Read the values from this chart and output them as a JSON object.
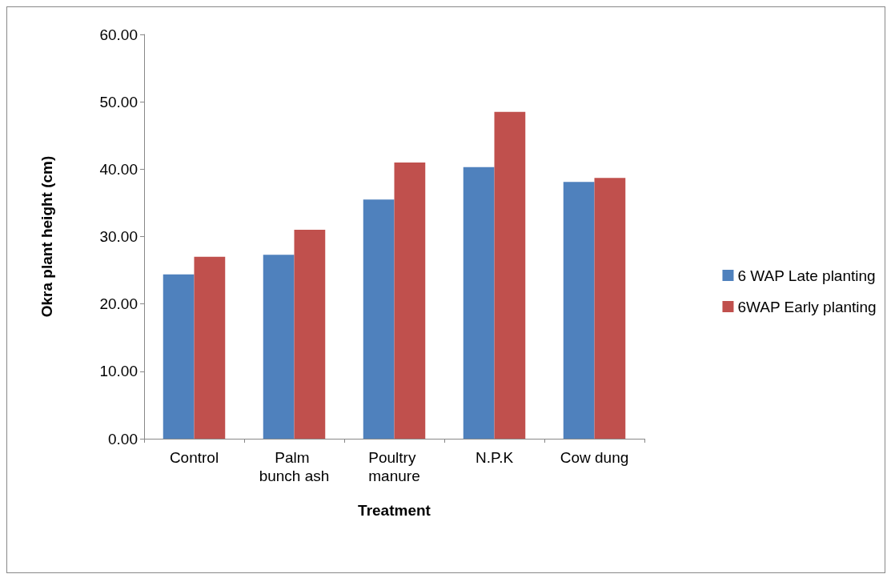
{
  "chart_data": {
    "type": "bar",
    "xlabel": "Treatment",
    "ylabel": "Okra plant height (cm)",
    "categories": [
      "Control",
      "Palm bunch ash",
      "Poultry manure",
      "N.P.K",
      "Cow dung"
    ],
    "series": [
      {
        "name": "6 WAP Late planting",
        "color": "#4f81bd",
        "values": [
          24.4,
          27.3,
          35.5,
          40.3,
          38.1
        ]
      },
      {
        "name": "6WAP Early planting",
        "color": "#c0504d",
        "values": [
          27.0,
          31.0,
          41.0,
          48.5,
          38.7
        ]
      }
    ],
    "ylim": [
      0,
      60
    ],
    "yticks": [
      {
        "value": 0,
        "label": "0.00"
      },
      {
        "value": 10,
        "label": "10.00"
      },
      {
        "value": 20,
        "label": "20.00"
      },
      {
        "value": 30,
        "label": "30.00"
      },
      {
        "value": 40,
        "label": "40.00"
      },
      {
        "value": 50,
        "label": "50.00"
      },
      {
        "value": 60,
        "label": "60.00"
      }
    ],
    "grid": false,
    "legend": "right"
  }
}
